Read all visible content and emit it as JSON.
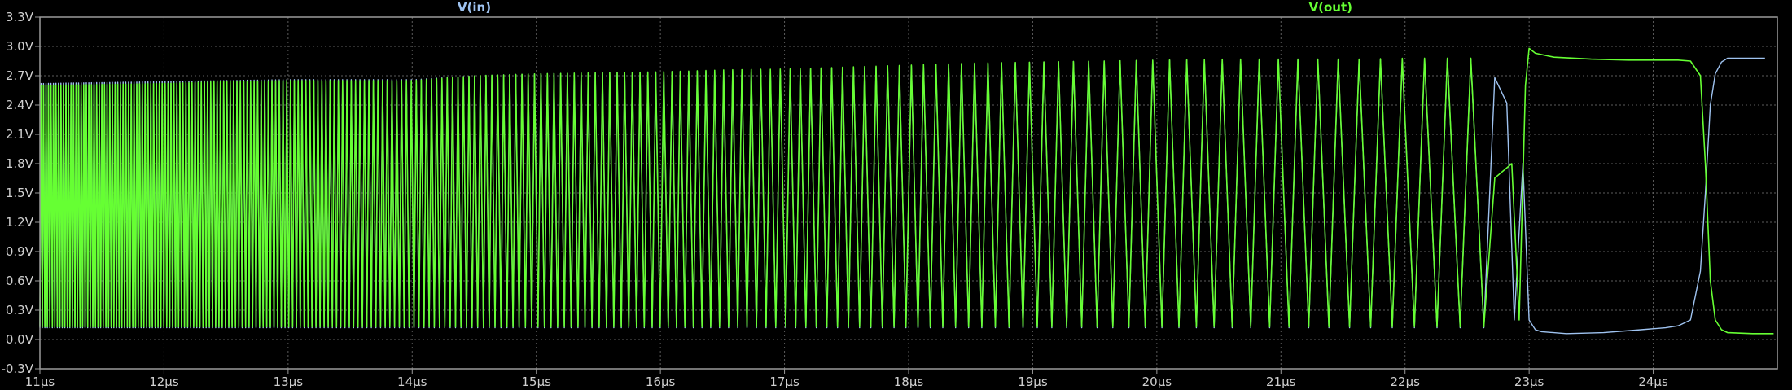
{
  "chart_data": {
    "type": "line",
    "xlabel": "",
    "ylabel": "",
    "xlim": [
      11,
      25
    ],
    "ylim": [
      -0.3,
      3.3
    ],
    "x_ticks": [
      11,
      12,
      13,
      14,
      15,
      16,
      17,
      18,
      19,
      20,
      21,
      22,
      23,
      24
    ],
    "x_tick_labels": [
      "11µs",
      "12µs",
      "13µs",
      "14µs",
      "15µs",
      "16µs",
      "17µs",
      "18µs",
      "19µs",
      "20µs",
      "21µs",
      "22µs",
      "23µs",
      "24µs"
    ],
    "y_ticks": [
      -0.3,
      0.0,
      0.3,
      0.6,
      0.9,
      1.2,
      1.5,
      1.8,
      2.1,
      2.4,
      2.7,
      3.0,
      3.3
    ],
    "y_tick_labels": [
      "-0.3V",
      "0.0V",
      "0.3V",
      "0.6V",
      "0.9V",
      "1.2V",
      "1.5V",
      "1.8V",
      "2.1V",
      "2.4V",
      "2.7V",
      "3.0V",
      "3.3V"
    ],
    "grid": true,
    "legend_placement": "top",
    "colors": {
      "background": "#000000",
      "axis": "#9a9a9a",
      "grid": "#5c5c5c",
      "vin": "#9fc3f0",
      "vout": "#66ff33"
    },
    "series": [
      {
        "name": "V(in)",
        "color": "#9fc3f0",
        "x": [
          11.0,
          11.5,
          12.0,
          12.5,
          13.0,
          13.5,
          14.0,
          14.5,
          15.0,
          15.5,
          16.0,
          16.5,
          17.0,
          17.5,
          18.0,
          18.5,
          19.0,
          19.5,
          20.0,
          20.5,
          21.0,
          21.5,
          22.0,
          22.5,
          22.82,
          22.88,
          22.95,
          23.0,
          23.05,
          23.1,
          23.3,
          23.6,
          23.9,
          24.1,
          24.2,
          24.3,
          24.38,
          24.42,
          24.46,
          24.5,
          24.55,
          24.6,
          24.7,
          24.9
        ],
        "y": [
          2.62,
          2.63,
          2.64,
          2.65,
          2.66,
          2.66,
          2.66,
          2.7,
          2.72,
          2.73,
          2.74,
          2.75,
          2.76,
          2.78,
          2.8,
          2.82,
          2.84,
          2.85,
          2.86,
          2.86,
          2.86,
          2.86,
          2.87,
          2.87,
          2.42,
          0.2,
          1.8,
          0.2,
          0.1,
          0.08,
          0.06,
          0.07,
          0.1,
          0.12,
          0.14,
          0.2,
          0.7,
          1.5,
          2.4,
          2.72,
          2.84,
          2.88,
          2.88,
          2.88
        ]
      },
      {
        "name": "V(out)",
        "color": "#66ff33",
        "x": [
          11.0,
          11.5,
          12.0,
          12.5,
          13.0,
          13.5,
          14.0,
          14.5,
          15.0,
          15.5,
          16.0,
          16.5,
          17.0,
          17.5,
          18.0,
          18.5,
          19.0,
          19.5,
          20.0,
          20.5,
          21.0,
          21.5,
          22.0,
          22.5,
          22.8,
          22.86,
          22.92,
          22.97,
          23.0,
          23.05,
          23.2,
          23.5,
          23.8,
          24.0,
          24.2,
          24.3,
          24.38,
          24.42,
          24.46,
          24.5,
          24.55,
          24.6,
          24.8,
          24.97
        ],
        "y": [
          2.6,
          2.61,
          2.62,
          2.64,
          2.65,
          2.65,
          2.65,
          2.7,
          2.72,
          2.73,
          2.74,
          2.76,
          2.77,
          2.79,
          2.81,
          2.83,
          2.84,
          2.85,
          2.86,
          2.87,
          2.87,
          2.87,
          2.88,
          2.88,
          0.15,
          1.8,
          0.2,
          2.6,
          2.98,
          2.93,
          2.89,
          2.87,
          2.86,
          2.86,
          2.86,
          2.85,
          2.7,
          1.8,
          0.6,
          0.2,
          0.1,
          0.07,
          0.06,
          0.06
        ]
      }
    ],
    "oscillation": {
      "x_start": 11.0,
      "x_end": 22.82,
      "low_level": 0.12,
      "period_start": 0.02,
      "period_end": 0.2
    }
  }
}
